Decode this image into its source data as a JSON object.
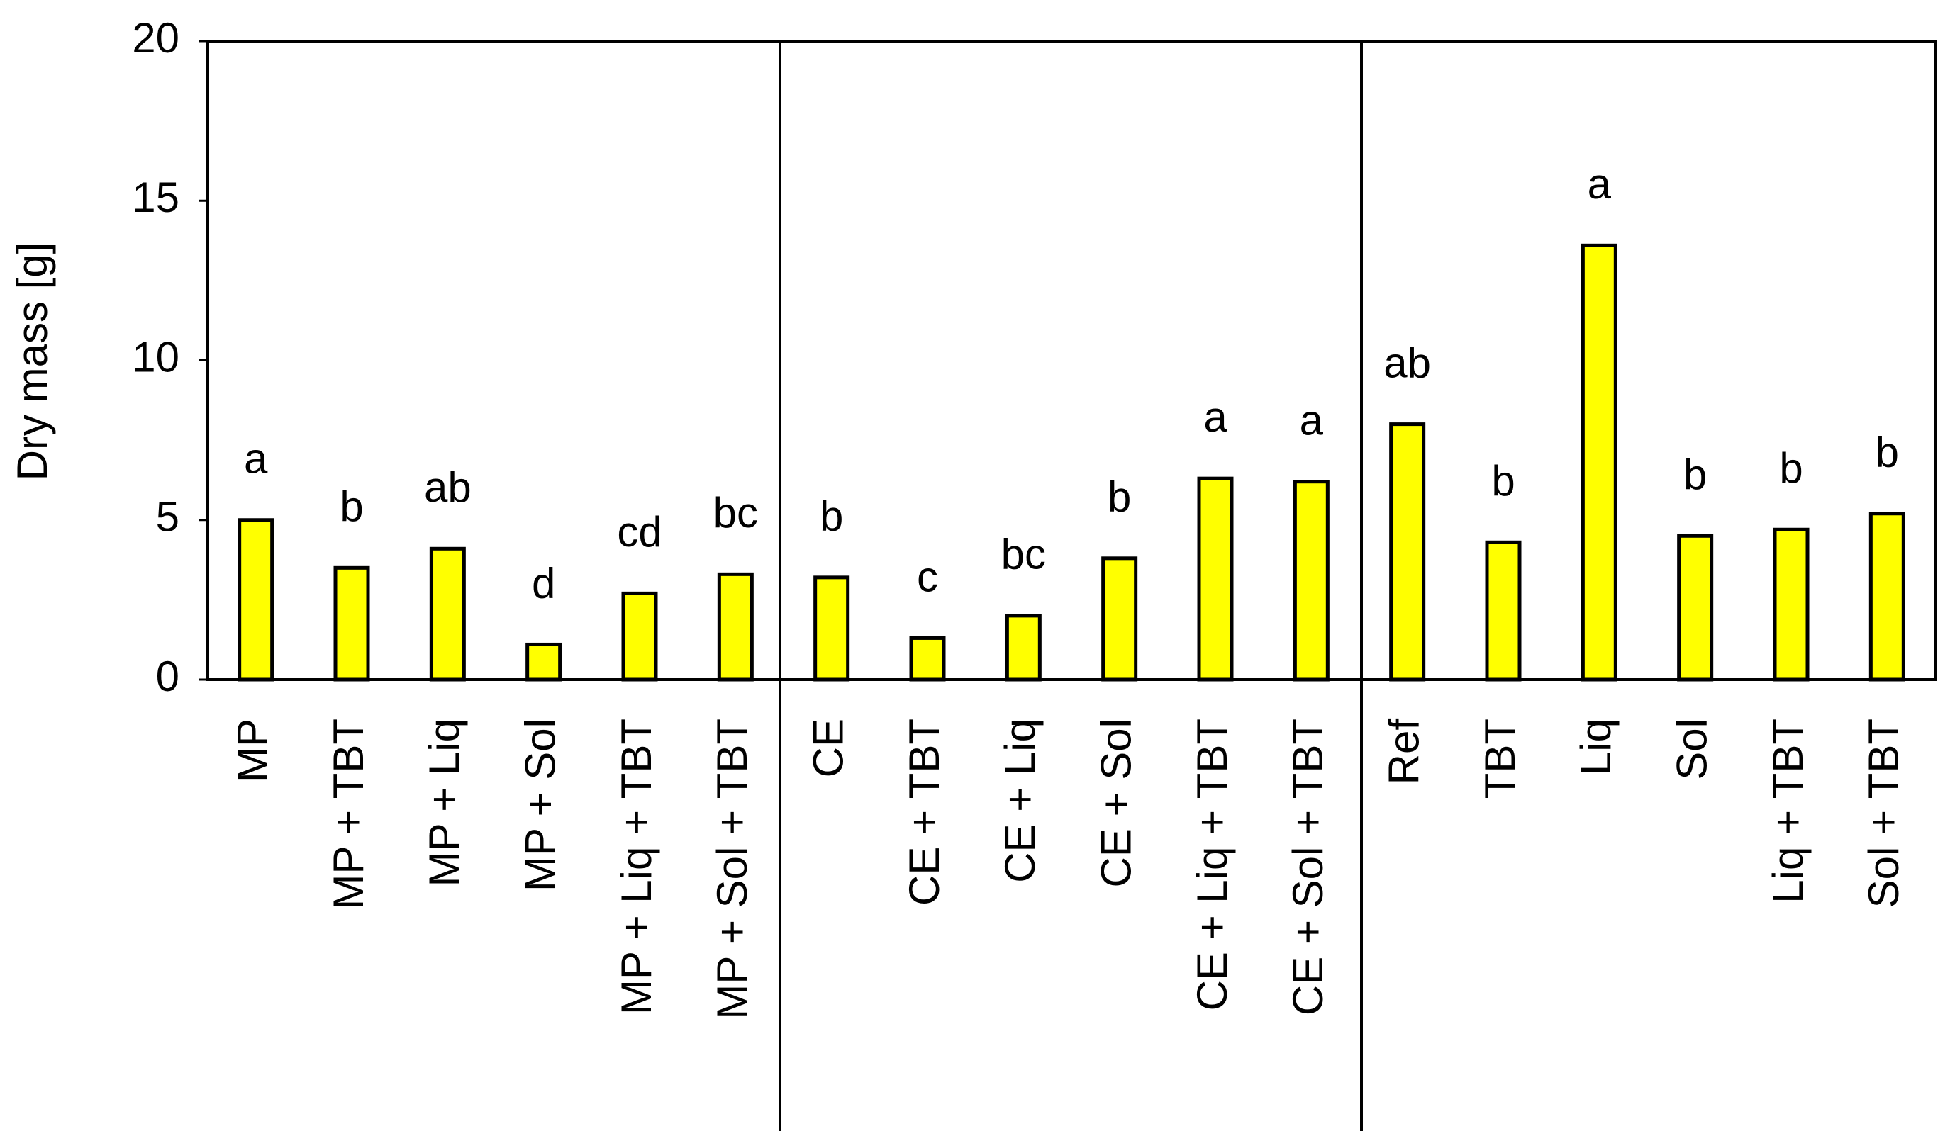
{
  "chart_data": {
    "type": "bar",
    "y_label": "Dry mass [g]",
    "categories": [
      "MP",
      "MP + TBT",
      "MP + Liq",
      "MP + Sol",
      "MP + Liq + TBT",
      "MP + Sol + TBT",
      "CE",
      "CE + TBT",
      "CE + Liq",
      "CE + Sol",
      "CE + Liq + TBT",
      "CE + Sol + TBT",
      "Ref",
      "TBT",
      "Liq",
      "Sol",
      "Liq + TBT",
      "Sol + TBT"
    ],
    "values": [
      5.0,
      3.5,
      4.1,
      1.1,
      2.7,
      3.3,
      3.2,
      1.3,
      2.0,
      3.8,
      6.3,
      6.2,
      8.0,
      4.3,
      13.6,
      4.5,
      4.7,
      5.2
    ],
    "annotations": [
      "a",
      "b",
      "ab",
      "d",
      "cd",
      "bc",
      "b",
      "c",
      "bc",
      "b",
      "a",
      "a",
      "ab",
      "b",
      "a",
      "b",
      "b",
      "b"
    ],
    "color": "#ffff00",
    "ylim": [
      0,
      20
    ],
    "yticks": [
      0,
      5,
      10,
      15,
      20
    ],
    "grid": false
  }
}
